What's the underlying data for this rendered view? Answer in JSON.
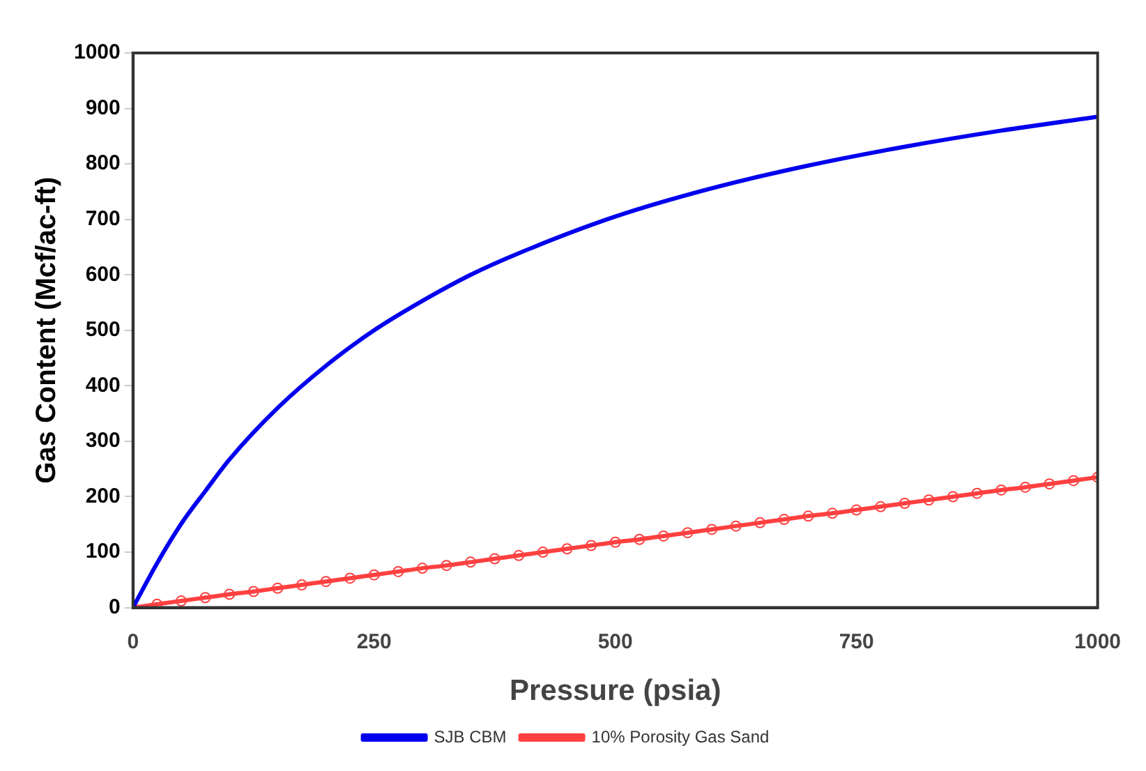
{
  "chart_data": {
    "type": "line",
    "xlabel": "Pressure (psia)",
    "ylabel": "Gas Content (Mcf/ac-ft)",
    "xlim": [
      0,
      1000
    ],
    "xticks": [
      0,
      250,
      500,
      750,
      1000
    ],
    "ylim": [
      0,
      1000
    ],
    "yticks": [
      0,
      100,
      200,
      300,
      400,
      500,
      600,
      700,
      800,
      900,
      1000
    ],
    "grid": false,
    "legend": "bottom",
    "series": [
      {
        "name": "SJB CBM",
        "color": "#0000ee",
        "marker": "none",
        "x": [
          0,
          25,
          50,
          75,
          100,
          150,
          200,
          250,
          300,
          350,
          400,
          500,
          600,
          700,
          800,
          900,
          1000
        ],
        "values": [
          0,
          80,
          151,
          210,
          267,
          360,
          436,
          500,
          553,
          600,
          639,
          705,
          756,
          797,
          831,
          860,
          885
        ]
      },
      {
        "name": "10% Porosity Gas Sand",
        "color": "#ff4040",
        "marker": "circle",
        "x": [
          0,
          25,
          50,
          75,
          100,
          125,
          150,
          175,
          200,
          225,
          250,
          275,
          300,
          325,
          350,
          375,
          400,
          425,
          450,
          475,
          500,
          525,
          550,
          575,
          600,
          625,
          650,
          675,
          700,
          725,
          750,
          775,
          800,
          825,
          850,
          875,
          900,
          925,
          950,
          975,
          1000
        ],
        "values": [
          0,
          6,
          12,
          18,
          24,
          29,
          35,
          41,
          47,
          53,
          59,
          65,
          71,
          76,
          82,
          88,
          94,
          100,
          106,
          112,
          118,
          123,
          129,
          135,
          141,
          147,
          153,
          159,
          165,
          170,
          176,
          182,
          188,
          194,
          200,
          206,
          212,
          217,
          223,
          229,
          235
        ]
      }
    ]
  }
}
